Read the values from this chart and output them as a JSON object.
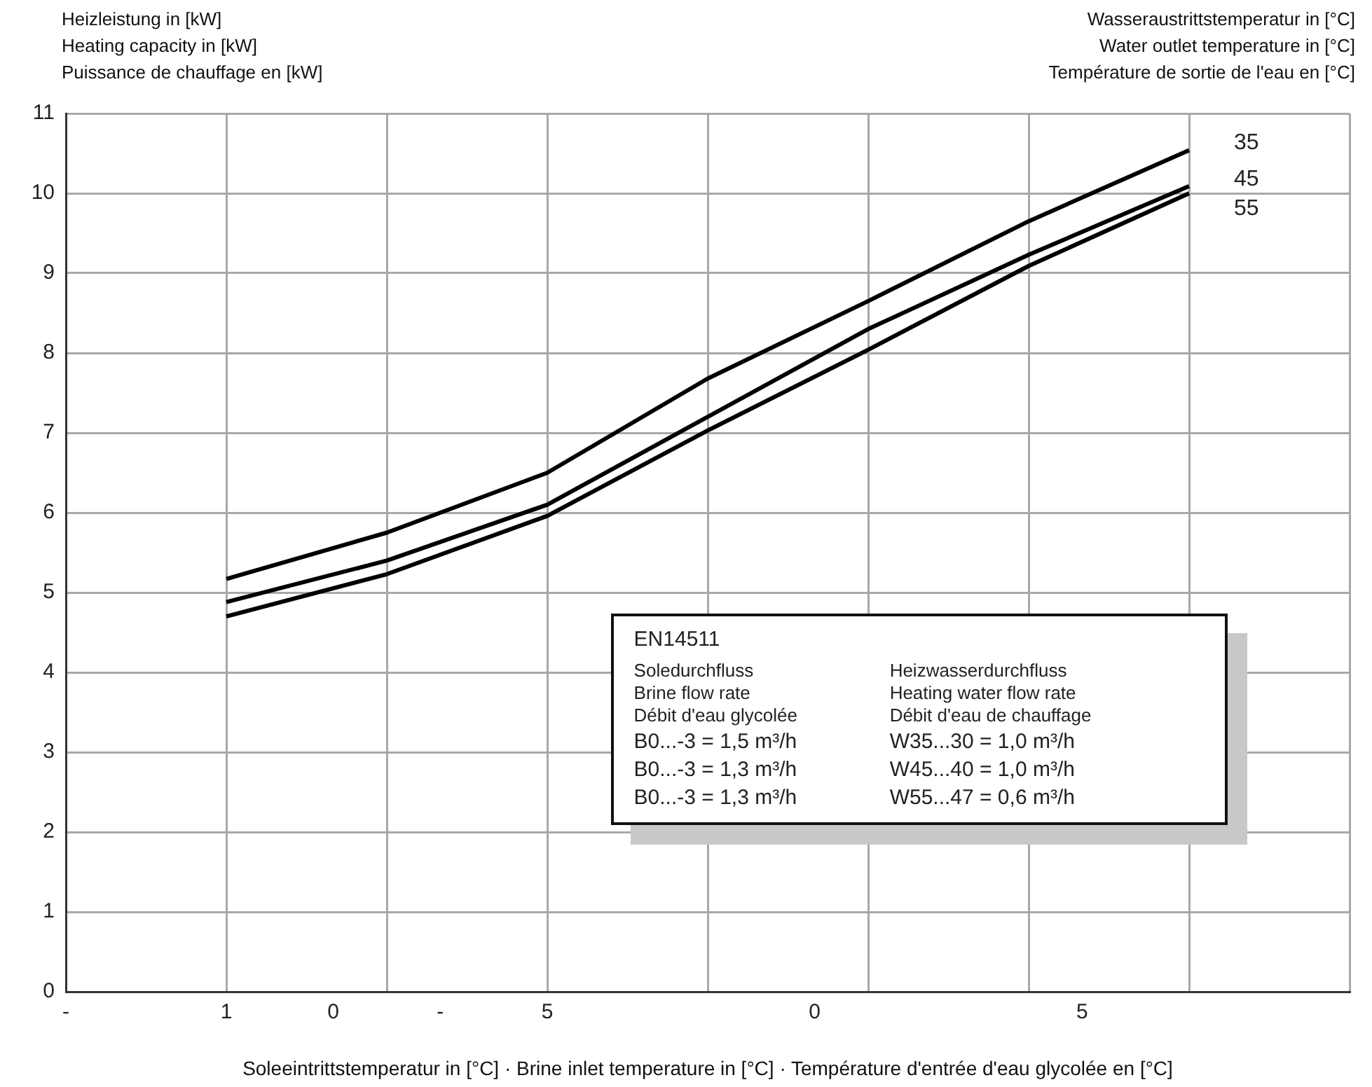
{
  "chart_data": {
    "type": "line",
    "ylabel": "Heizleistung in [kW]\nHeating capacity in [kW]\nPuissance de chauffage en [kW]",
    "legend_title": "Wasseraustrittstemperatur in [°C]\nWater outlet temperature in [°C]\nTempérature de sortie de l'eau en [°C]",
    "xlabel": "Soleeintrittstemperatur in [°C] · Brine inlet temperature in [°C] · Température d'entrée d'eau glycolée en [°C]",
    "categories": [
      "-",
      null,
      null,
      "1",
      null,
      "0",
      null,
      "-",
      null,
      "5",
      null,
      null,
      null,
      null,
      "0",
      null,
      null,
      null,
      null,
      "5",
      null,
      null,
      null,
      null,
      null
    ],
    "series": [
      {
        "name": "35",
        "color": "#000000",
        "values": [
          null,
          null,
          null,
          5.17,
          null,
          null,
          5.75,
          null,
          null,
          6.5,
          null,
          null,
          7.68,
          null,
          null,
          8.65,
          null,
          null,
          9.65,
          null,
          null,
          10.54,
          null,
          null,
          null
        ]
      },
      {
        "name": "45",
        "color": "#000000",
        "values": [
          null,
          null,
          null,
          4.88,
          null,
          null,
          5.4,
          null,
          null,
          6.1,
          null,
          null,
          7.2,
          null,
          null,
          8.3,
          null,
          null,
          9.23,
          null,
          null,
          10.09,
          null,
          null,
          null
        ]
      },
      {
        "name": "55",
        "color": "#000000",
        "values": [
          null,
          null,
          null,
          4.7,
          null,
          null,
          5.23,
          null,
          null,
          5.96,
          null,
          null,
          7.03,
          null,
          null,
          8.04,
          null,
          null,
          9.09,
          null,
          null,
          10.0,
          null,
          null,
          null
        ]
      }
    ],
    "ylim": [
      0,
      11
    ],
    "yticks": [
      0,
      1,
      2,
      3,
      4,
      5,
      6,
      7,
      8,
      9,
      10,
      11
    ],
    "grid": true,
    "marker": "none",
    "line_style": "solid",
    "annotations": [
      "EN14511",
      "Soledurchfluss",
      "Heizwasserdurchfluss",
      "Brine flow rate",
      "Heating water flow rate",
      "Débit d'eau glycolée",
      "Débit d'eau de chauffage",
      "B0...-3 = 1,5 m³/h",
      "W35...30 = 1,0 m³/h",
      "B0...-3 = 1,3 m³/h",
      "W45...40 = 1,0 m³/h",
      "B0...-3 = 1,3 m³/h",
      "W55...47 = 0,6 m³/h"
    ]
  }
}
